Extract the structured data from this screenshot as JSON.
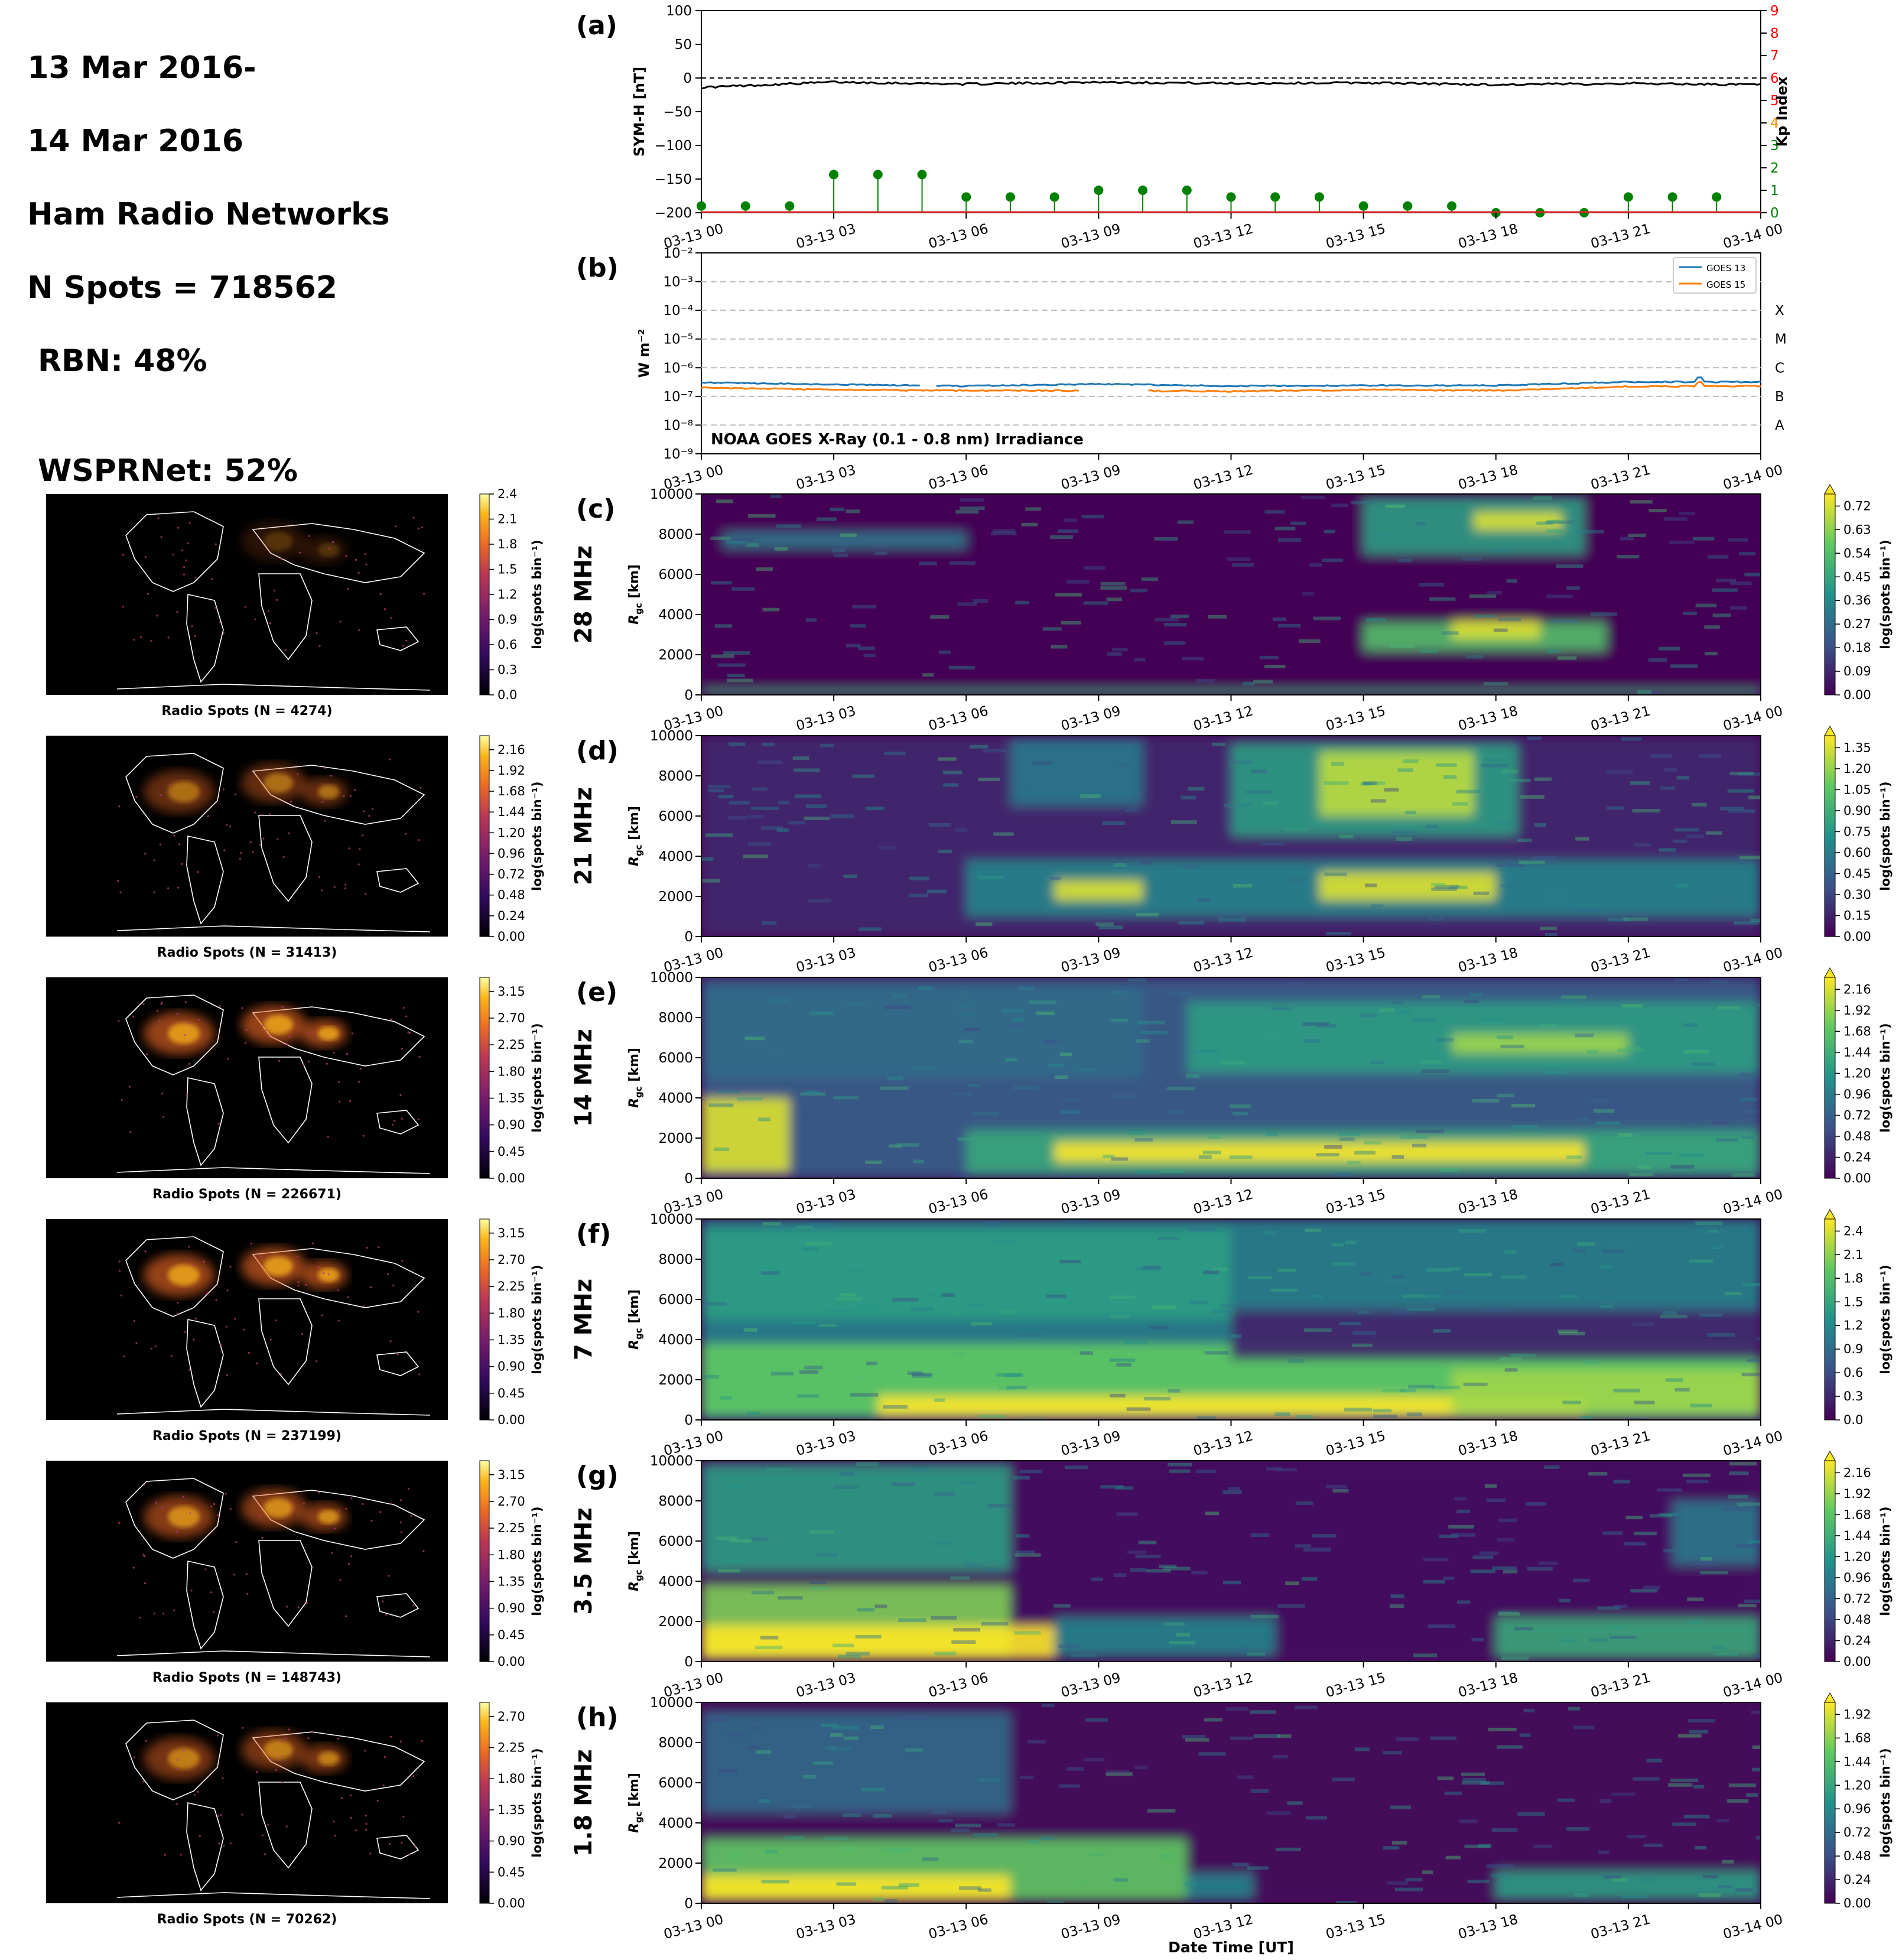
{
  "header": {
    "lines": [
      "13 Mar 2016-",
      "14 Mar 2016",
      "Ham Radio Networks",
      "N Spots = 718562"
    ],
    "indented": [
      "RBN: 48%",
      "WSPRNet: 52%"
    ]
  },
  "time_ticks": [
    "03-13 00",
    "03-13 03",
    "03-13 06",
    "03-13 09",
    "03-13 12",
    "03-13 15",
    "03-13 18",
    "03-13 21",
    "03-14 00"
  ],
  "xlabel": "Date Time [UT]",
  "panel_a": {
    "label": "(a)",
    "ylabel_left": "SYM-H [nT]",
    "ylabel_right": "Kp Index",
    "yticks_left": [
      "100",
      "50",
      "0",
      "−50",
      "−100",
      "−150",
      "−200"
    ],
    "yticks_right": [
      "9",
      "8",
      "7",
      "6",
      "5",
      "4",
      "3",
      "2",
      "1",
      "0"
    ]
  },
  "panel_b": {
    "label": "(b)",
    "ylabel": "W m⁻²",
    "yticks": [
      "10⁻²",
      "10⁻³",
      "10⁻⁴",
      "10⁻⁵",
      "10⁻⁶",
      "10⁻⁷",
      "10⁻⁸",
      "10⁻⁹"
    ],
    "classes": [
      "X",
      "M",
      "C",
      "B",
      "A"
    ],
    "legend": [
      "GOES 13",
      "GOES 15"
    ],
    "annotation": "NOAA GOES X-Ray (0.1 - 0.8 nm) Irradiance"
  },
  "bands": [
    {
      "label": "(c)",
      "freq": "28 MHz",
      "map_caption": "Radio Spots (N = 4274)",
      "map_ticks": [
        "2.4",
        "2.1",
        "1.8",
        "1.5",
        "1.2",
        "0.9",
        "0.6",
        "0.3",
        "0.0"
      ],
      "cb_ticks": [
        "0.72",
        "0.63",
        "0.54",
        "0.45",
        "0.36",
        "0.27",
        "0.18",
        "0.09",
        "0.00"
      ]
    },
    {
      "label": "(d)",
      "freq": "21 MHz",
      "map_caption": "Radio Spots (N = 31413)",
      "map_ticks": [
        "2.16",
        "1.92",
        "1.68",
        "1.44",
        "1.20",
        "0.96",
        "0.72",
        "0.48",
        "0.24",
        "0.00"
      ],
      "cb_ticks": [
        "1.35",
        "1.20",
        "1.05",
        "0.90",
        "0.75",
        "0.60",
        "0.45",
        "0.30",
        "0.15",
        "0.00"
      ]
    },
    {
      "label": "(e)",
      "freq": "14 MHz",
      "map_caption": "Radio Spots (N = 226671)",
      "map_ticks": [
        "3.15",
        "2.70",
        "2.25",
        "1.80",
        "1.35",
        "0.90",
        "0.45",
        "0.00"
      ],
      "cb_ticks": [
        "2.16",
        "1.92",
        "1.68",
        "1.44",
        "1.20",
        "0.96",
        "0.72",
        "0.48",
        "0.24",
        "0.00"
      ]
    },
    {
      "label": "(f)",
      "freq": "7 MHz",
      "map_caption": "Radio Spots (N = 237199)",
      "map_ticks": [
        "3.15",
        "2.70",
        "2.25",
        "1.80",
        "1.35",
        "0.90",
        "0.45",
        "0.00"
      ],
      "cb_ticks": [
        "2.4",
        "2.1",
        "1.8",
        "1.5",
        "1.2",
        "0.9",
        "0.6",
        "0.3",
        "0.0"
      ]
    },
    {
      "label": "(g)",
      "freq": "3.5 MHz",
      "map_caption": "Radio Spots (N = 148743)",
      "map_ticks": [
        "3.15",
        "2.70",
        "2.25",
        "1.80",
        "1.35",
        "0.90",
        "0.45",
        "0.00"
      ],
      "cb_ticks": [
        "2.16",
        "1.92",
        "1.68",
        "1.44",
        "1.20",
        "0.96",
        "0.72",
        "0.48",
        "0.24",
        "0.00"
      ]
    },
    {
      "label": "(h)",
      "freq": "1.8 MHz",
      "map_caption": "Radio Spots (N = 70262)",
      "map_ticks": [
        "2.70",
        "2.25",
        "1.80",
        "1.35",
        "0.90",
        "0.45",
        "0.00"
      ],
      "cb_ticks": [
        "1.92",
        "1.68",
        "1.44",
        "1.20",
        "0.96",
        "0.72",
        "0.48",
        "0.24",
        "0.00"
      ]
    }
  ],
  "band_ylabel": "R",
  "band_ylabel_sub": "gc",
  "band_ylabel_unit": " [km]",
  "band_yticks": [
    "10000",
    "8000",
    "6000",
    "4000",
    "2000",
    "0"
  ],
  "cb_label": "log(spots bin⁻¹)",
  "colors": {
    "symh": "#000000",
    "kp": "#008000",
    "goes13": "#1f77b4",
    "goes15": "#ff7f0e",
    "kp_right_red": "#ff0000",
    "kp_right_orange": "#ff8c00",
    "kp_right_green": "#008000",
    "map_bg": "#000000",
    "viridis_dark": "#440154",
    "viridis_yellow": "#fde725"
  },
  "chart_data": [
    {
      "type": "line",
      "title": "(a)",
      "ylabel": "SYM-H [nT]",
      "ylim": [
        -200,
        100
      ],
      "x": [
        "03-13 00",
        "03-13 03",
        "03-13 06",
        "03-13 09",
        "03-13 12",
        "03-13 15",
        "03-13 18",
        "03-13 21",
        "03-14 00"
      ],
      "series": [
        {
          "name": "",
          "values": [
            -14,
            -6,
            -9,
            -6,
            -8,
            -7,
            -10,
            -8,
            -10
          ]
        }
      ]
    },
    {
      "type": "bar",
      "ylabel": "Kp Index",
      "ylim": [
        0,
        9
      ],
      "categories": [
        "00",
        "01",
        "02",
        "03",
        "04",
        "05",
        "06",
        "07",
        "08",
        "09",
        "10",
        "11",
        "12",
        "13",
        "14",
        "15",
        "16",
        "17",
        "18",
        "19",
        "20",
        "21",
        "22",
        "23"
      ],
      "values": [
        0.3,
        0.3,
        0.3,
        1.7,
        1.7,
        1.7,
        0.7,
        0.7,
        0.7,
        1.0,
        1.0,
        1.0,
        0.7,
        0.7,
        0.7,
        0.3,
        0.3,
        0.3,
        0.0,
        0.0,
        0.0,
        0.7,
        0.7,
        0.7
      ]
    },
    {
      "type": "line",
      "title": "NOAA GOES X-Ray (0.1 - 0.8 nm) Irradiance",
      "ylabel": "W m⁻²",
      "yscale": "log",
      "ylim": [
        1e-09,
        0.01
      ],
      "x": [
        "03-13 00",
        "03-13 03",
        "03-13 06",
        "03-13 09",
        "03-13 12",
        "03-13 15",
        "03-13 18",
        "03-13 21",
        "03-14 00"
      ],
      "series": [
        {
          "name": "GOES 13",
          "values": [
            3e-07,
            2.6e-07,
            2.3e-07,
            2.7e-07,
            2.3e-07,
            2.4e-07,
            2.4e-07,
            3.2e-07,
            3.2e-07
          ]
        },
        {
          "name": "GOES 15",
          "values": [
            2e-07,
            1.7e-07,
            1.6e-07,
            1.6e-07,
            1.5e-07,
            1.7e-07,
            1.6e-07,
            2.2e-07,
            2.3e-07
          ]
        }
      ]
    },
    {
      "type": "heatmap",
      "title": "28 MHz",
      "ylabel": "Rgc [km]",
      "ylim": [
        0,
        10000
      ],
      "clim": [
        0,
        0.72
      ]
    },
    {
      "type": "heatmap",
      "title": "21 MHz",
      "ylabel": "Rgc [km]",
      "ylim": [
        0,
        10000
      ],
      "clim": [
        0,
        1.35
      ]
    },
    {
      "type": "heatmap",
      "title": "14 MHz",
      "ylabel": "Rgc [km]",
      "ylim": [
        0,
        10000
      ],
      "clim": [
        0,
        2.16
      ]
    },
    {
      "type": "heatmap",
      "title": "7 MHz",
      "ylabel": "Rgc [km]",
      "ylim": [
        0,
        10000
      ],
      "clim": [
        0,
        2.4
      ]
    },
    {
      "type": "heatmap",
      "title": "3.5 MHz",
      "ylabel": "Rgc [km]",
      "ylim": [
        0,
        10000
      ],
      "clim": [
        0,
        2.16
      ]
    },
    {
      "type": "heatmap",
      "title": "1.8 MHz",
      "ylabel": "Rgc [km]",
      "ylim": [
        0,
        10000
      ],
      "clim": [
        0,
        1.92
      ]
    }
  ]
}
